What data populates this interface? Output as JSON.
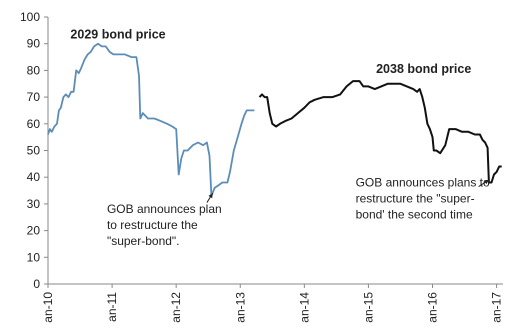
{
  "chart_data": {
    "type": "line",
    "title": "",
    "xlabel": "",
    "ylabel": "",
    "ylim": [
      0,
      100
    ],
    "yticks": [
      0,
      10,
      20,
      30,
      40,
      50,
      60,
      70,
      80,
      90,
      100
    ],
    "xlim": [
      2010.0,
      2017.1
    ],
    "xticks": [
      {
        "x": 2010,
        "label": "an-10"
      },
      {
        "x": 2011,
        "label": "an-11"
      },
      {
        "x": 2012,
        "label": "an-12"
      },
      {
        "x": 2013,
        "label": "an-13"
      },
      {
        "x": 2014,
        "label": "an-14"
      },
      {
        "x": 2015,
        "label": "an-15"
      },
      {
        "x": 2016,
        "label": "an-16"
      },
      {
        "x": 2017,
        "label": "an-17"
      }
    ],
    "grid": false,
    "legend": "none",
    "series": [
      {
        "name": "2029 bond price",
        "color": "#5b8db8",
        "label_at": {
          "x": 2010.35,
          "y": 92
        },
        "points": [
          [
            2010.0,
            56
          ],
          [
            2010.03,
            58
          ],
          [
            2010.06,
            57
          ],
          [
            2010.1,
            59
          ],
          [
            2010.14,
            60
          ],
          [
            2010.17,
            65
          ],
          [
            2010.2,
            66
          ],
          [
            2010.24,
            70
          ],
          [
            2010.28,
            71
          ],
          [
            2010.32,
            70
          ],
          [
            2010.36,
            72
          ],
          [
            2010.4,
            72
          ],
          [
            2010.44,
            80
          ],
          [
            2010.48,
            79
          ],
          [
            2010.52,
            81
          ],
          [
            2010.57,
            84
          ],
          [
            2010.62,
            86
          ],
          [
            2010.67,
            87
          ],
          [
            2010.72,
            89
          ],
          [
            2010.78,
            90
          ],
          [
            2010.84,
            89
          ],
          [
            2010.9,
            89
          ],
          [
            2010.96,
            87
          ],
          [
            2011.02,
            86
          ],
          [
            2011.1,
            86
          ],
          [
            2011.2,
            86
          ],
          [
            2011.3,
            85
          ],
          [
            2011.38,
            85
          ],
          [
            2011.42,
            78
          ],
          [
            2011.44,
            62
          ],
          [
            2011.48,
            64
          ],
          [
            2011.56,
            62
          ],
          [
            2011.66,
            62
          ],
          [
            2011.76,
            61
          ],
          [
            2011.86,
            60
          ],
          [
            2011.94,
            59
          ],
          [
            2012.0,
            58
          ],
          [
            2012.04,
            41
          ],
          [
            2012.08,
            47
          ],
          [
            2012.12,
            50
          ],
          [
            2012.18,
            50
          ],
          [
            2012.26,
            52
          ],
          [
            2012.34,
            53
          ],
          [
            2012.42,
            52
          ],
          [
            2012.48,
            53
          ],
          [
            2012.52,
            48
          ],
          [
            2012.55,
            33
          ],
          [
            2012.6,
            36
          ],
          [
            2012.66,
            37
          ],
          [
            2012.72,
            38
          ],
          [
            2012.76,
            38
          ],
          [
            2012.8,
            38
          ],
          [
            2012.84,
            42
          ],
          [
            2012.9,
            50
          ],
          [
            2012.96,
            55
          ],
          [
            2013.02,
            60
          ],
          [
            2013.06,
            63
          ],
          [
            2013.1,
            65
          ],
          [
            2013.16,
            65
          ],
          [
            2013.22,
            65
          ]
        ]
      },
      {
        "name": "2038 bond price",
        "color": "#111111",
        "label_at": {
          "x": 2015.12,
          "y": 79
        },
        "points": [
          [
            2013.3,
            70
          ],
          [
            2013.34,
            71
          ],
          [
            2013.38,
            70
          ],
          [
            2013.42,
            70
          ],
          [
            2013.46,
            64
          ],
          [
            2013.5,
            60
          ],
          [
            2013.56,
            59
          ],
          [
            2013.62,
            60
          ],
          [
            2013.7,
            61
          ],
          [
            2013.8,
            62
          ],
          [
            2013.9,
            64
          ],
          [
            2014.0,
            66
          ],
          [
            2014.08,
            68
          ],
          [
            2014.16,
            69
          ],
          [
            2014.3,
            70
          ],
          [
            2014.44,
            70
          ],
          [
            2014.56,
            71
          ],
          [
            2014.66,
            74
          ],
          [
            2014.76,
            76
          ],
          [
            2014.86,
            76
          ],
          [
            2014.92,
            74
          ],
          [
            2015.0,
            74
          ],
          [
            2015.1,
            73
          ],
          [
            2015.2,
            74
          ],
          [
            2015.3,
            75
          ],
          [
            2015.4,
            75
          ],
          [
            2015.5,
            75
          ],
          [
            2015.6,
            74
          ],
          [
            2015.7,
            73
          ],
          [
            2015.76,
            72
          ],
          [
            2015.8,
            73
          ],
          [
            2015.84,
            70
          ],
          [
            2015.88,
            66
          ],
          [
            2015.92,
            60
          ],
          [
            2015.96,
            58
          ],
          [
            2016.0,
            55
          ],
          [
            2016.02,
            50
          ],
          [
            2016.06,
            50
          ],
          [
            2016.12,
            49
          ],
          [
            2016.2,
            52
          ],
          [
            2016.26,
            58
          ],
          [
            2016.36,
            58
          ],
          [
            2016.46,
            57
          ],
          [
            2016.56,
            57
          ],
          [
            2016.66,
            56
          ],
          [
            2016.74,
            56
          ],
          [
            2016.78,
            54
          ],
          [
            2016.82,
            53
          ],
          [
            2016.86,
            51
          ],
          [
            2016.88,
            38
          ],
          [
            2016.92,
            38
          ],
          [
            2016.96,
            41
          ],
          [
            2017.0,
            42
          ],
          [
            2017.04,
            44
          ],
          [
            2017.08,
            44
          ]
        ]
      }
    ],
    "annotations": [
      {
        "lines": [
          "GOB announces plan",
          "to restructure the",
          "\"super-bond\"."
        ],
        "arrow_to": {
          "x": 2012.57,
          "y": 34
        },
        "arrow_from": {
          "x": 2012.48,
          "y": 30.5
        },
        "text_at": {
          "x": 2010.92,
          "y": 26.5
        }
      },
      {
        "lines": [
          "GOB announces plans to",
          "restructure the \"super-",
          "bond' the second time"
        ],
        "arrow_to": {
          "x": 2016.88,
          "y": 39
        },
        "arrow_from": {
          "x": 2016.72,
          "y": 36.5
        },
        "text_at": {
          "x": 2014.8,
          "y": 36.5
        }
      }
    ]
  }
}
